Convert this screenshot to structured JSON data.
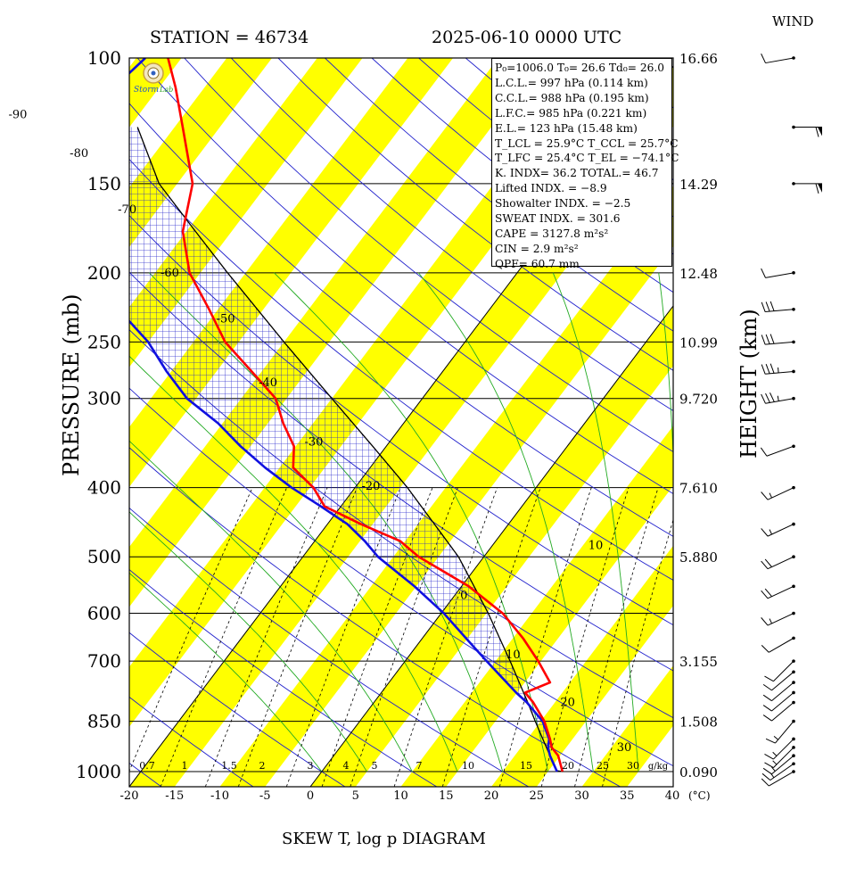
{
  "header": {
    "station": "STATION = 46734",
    "datetime": "2025-06-10 0000 UTC",
    "wind_label": "WIND",
    "footer_title": "SKEW T, log p DIAGRAM",
    "pressure_label": "PRESSURE (mb)",
    "height_label": "HEIGHT (km)",
    "unit_label": "(°C)",
    "mixing_unit": "g/kg",
    "logo_text": "Storm Lab"
  },
  "colors": {
    "temperature": "#ff0000",
    "dewpoint": "#1010e0",
    "band": "#ffff00",
    "dry_adiabat": "#1f1fcc",
    "moist_adiabat": "#22aa22",
    "cape_hatch": "#2222cc"
  },
  "indices": [
    "P₀=1006.0 T₀= 26.6 Td₀= 26.0",
    "L.C.L.= 997 hPa (0.114 km)",
    "C.C.L.= 988 hPa (0.195 km)",
    "L.F.C.= 985 hPa (0.221 km)",
    "E.L.= 123 hPa (15.48 km)",
    "T_LCL = 25.9°C  T_CCL = 25.7°C",
    "T_LFC = 25.4°C  T_EL = −74.1°C",
    "K. INDX= 36.2  TOTAL.= 46.7",
    "Lifted INDX. =  −8.9",
    "Showalter INDX. =   −2.5",
    "SWEAT INDX. =  301.6",
    "CAPE = 3127.8 m²s²",
    "CIN   =   2.9 m²s²",
    "QPF= 60.7 mm"
  ],
  "chart_data": {
    "type": "line",
    "title": "SKEW T, log p DIAGRAM",
    "xlabel": "(°C)",
    "ylabel": "PRESSURE (mb)",
    "y2label": "HEIGHT (km)",
    "y_scale": "log",
    "ylim": [
      1050,
      100
    ],
    "xlim": [
      -20,
      40
    ],
    "x_ticks": [
      -20,
      -15,
      -10,
      -5,
      0,
      5,
      10,
      15,
      20,
      25,
      30,
      35,
      40
    ],
    "pressure_ticks": [
      100,
      150,
      200,
      250,
      300,
      400,
      500,
      600,
      700,
      850,
      1000
    ],
    "height_ticks": [
      {
        "p": 100,
        "label": "16.66"
      },
      {
        "p": 150,
        "label": "14.29"
      },
      {
        "p": 200,
        "label": "12.48"
      },
      {
        "p": 250,
        "label": "10.99"
      },
      {
        "p": 300,
        "label": "9.720"
      },
      {
        "p": 400,
        "label": "7.610"
      },
      {
        "p": 500,
        "label": "5.880"
      },
      {
        "p": 700,
        "label": "3.155"
      },
      {
        "p": 850,
        "label": "1.508"
      },
      {
        "p": 1000,
        "label": "0.090"
      }
    ],
    "isotherm_labels": [
      {
        "t": -90,
        "p": 120
      },
      {
        "t": -80,
        "p": 136
      },
      {
        "t": -70,
        "p": 163
      },
      {
        "t": -60,
        "p": 200
      },
      {
        "t": -50,
        "p": 232
      },
      {
        "t": -40,
        "p": 285
      },
      {
        "t": -30,
        "p": 345
      },
      {
        "t": -20,
        "p": 398
      },
      {
        "t": 10,
        "p": 482
      },
      {
        "t": 0,
        "p": 566
      },
      {
        "t": 10,
        "p": 686
      },
      {
        "t": 20,
        "p": 800
      },
      {
        "t": 30,
        "p": 925
      }
    ],
    "mixing_ratio_labels": [
      "0.7",
      "1",
      "1.5",
      "2",
      "3",
      "4",
      "5",
      "7",
      "10",
      "15",
      "20",
      "25",
      "30"
    ],
    "series": [
      {
        "name": "temperature",
        "points": [
          [
            1000,
            26.6
          ],
          [
            950,
            24.8
          ],
          [
            925,
            23.4
          ],
          [
            900,
            22.5
          ],
          [
            850,
            20.4
          ],
          [
            800,
            17.6
          ],
          [
            775,
            15.9
          ],
          [
            750,
            17.8
          ],
          [
            700,
            14.7
          ],
          [
            650,
            11.1
          ],
          [
            600,
            6.8
          ],
          [
            550,
            0.8
          ],
          [
            500,
            -7.2
          ],
          [
            475,
            -10.6
          ],
          [
            450,
            -16.3
          ],
          [
            425,
            -21.8
          ],
          [
            400,
            -24.6
          ],
          [
            375,
            -28.5
          ],
          [
            350,
            -30.2
          ],
          [
            325,
            -33.3
          ],
          [
            300,
            -36.2
          ],
          [
            275,
            -41.1
          ],
          [
            250,
            -46.5
          ],
          [
            225,
            -51.0
          ],
          [
            200,
            -56.2
          ],
          [
            175,
            -60.4
          ],
          [
            150,
            -63.3
          ],
          [
            125,
            -69.1
          ],
          [
            110,
            -73.2
          ],
          [
            100,
            -76.5
          ]
        ]
      },
      {
        "name": "dewpoint",
        "points": [
          [
            1000,
            26.0
          ],
          [
            950,
            23.9
          ],
          [
            925,
            23.0
          ],
          [
            900,
            22.4
          ],
          [
            850,
            20.2
          ],
          [
            800,
            16.9
          ],
          [
            775,
            14.9
          ],
          [
            750,
            13.0
          ],
          [
            700,
            9.0
          ],
          [
            650,
            4.8
          ],
          [
            600,
            0.3
          ],
          [
            550,
            -5.2
          ],
          [
            500,
            -11.7
          ],
          [
            475,
            -14.5
          ],
          [
            450,
            -17.8
          ],
          [
            425,
            -22.2
          ],
          [
            400,
            -27.0
          ],
          [
            375,
            -31.6
          ],
          [
            350,
            -36.1
          ],
          [
            325,
            -40.5
          ],
          [
            300,
            -46.0
          ],
          [
            275,
            -50.5
          ],
          [
            250,
            -55.0
          ],
          [
            225,
            -61.0
          ],
          [
            200,
            -65.0
          ],
          [
            175,
            -70.0
          ],
          [
            150,
            -75.0
          ],
          [
            125,
            -80.1
          ],
          [
            115,
            -82.5
          ],
          [
            110,
            -80.0
          ],
          [
            100,
            -79.0
          ]
        ]
      },
      {
        "name": "parcel",
        "points": [
          [
            1000,
            26.6
          ],
          [
            997,
            25.9
          ],
          [
            950,
            23.9
          ],
          [
            900,
            21.7
          ],
          [
            850,
            19.4
          ],
          [
            800,
            17.0
          ],
          [
            700,
            11.6
          ],
          [
            600,
            5.2
          ],
          [
            500,
            -2.8
          ],
          [
            400,
            -14.2
          ],
          [
            350,
            -21.5
          ],
          [
            300,
            -30.0
          ],
          [
            250,
            -40.0
          ],
          [
            200,
            -52.0
          ],
          [
            175,
            -59.0
          ],
          [
            150,
            -67.0
          ],
          [
            125,
            -74.1
          ]
        ]
      }
    ],
    "wind_barbs": [
      {
        "p": 1000,
        "dir": 240,
        "spd": 10
      },
      {
        "p": 975,
        "dir": 235,
        "spd": 15
      },
      {
        "p": 950,
        "dir": 230,
        "spd": 15
      },
      {
        "p": 925,
        "dir": 225,
        "spd": 15
      },
      {
        "p": 900,
        "dir": 225,
        "spd": 15
      },
      {
        "p": 850,
        "dir": 220,
        "spd": 15
      },
      {
        "p": 800,
        "dir": 230,
        "spd": 10
      },
      {
        "p": 775,
        "dir": 230,
        "spd": 10
      },
      {
        "p": 750,
        "dir": 230,
        "spd": 10
      },
      {
        "p": 725,
        "dir": 230,
        "spd": 10
      },
      {
        "p": 700,
        "dir": 225,
        "spd": 10
      },
      {
        "p": 650,
        "dir": 240,
        "spd": 10
      },
      {
        "p": 600,
        "dir": 245,
        "spd": 15
      },
      {
        "p": 550,
        "dir": 245,
        "spd": 20
      },
      {
        "p": 500,
        "dir": 245,
        "spd": 20
      },
      {
        "p": 450,
        "dir": 245,
        "spd": 15
      },
      {
        "p": 400,
        "dir": 245,
        "spd": 15
      },
      {
        "p": 350,
        "dir": 250,
        "spd": 10
      },
      {
        "p": 300,
        "dir": 260,
        "spd": 35
      },
      {
        "p": 275,
        "dir": 265,
        "spd": 35
      },
      {
        "p": 250,
        "dir": 265,
        "spd": 30
      },
      {
        "p": 225,
        "dir": 265,
        "spd": 30
      },
      {
        "p": 200,
        "dir": 260,
        "spd": 10
      },
      {
        "p": 150,
        "dir": 90,
        "spd": 60
      },
      {
        "p": 125,
        "dir": 90,
        "spd": 60
      },
      {
        "p": 100,
        "dir": 260,
        "spd": 10
      }
    ]
  }
}
